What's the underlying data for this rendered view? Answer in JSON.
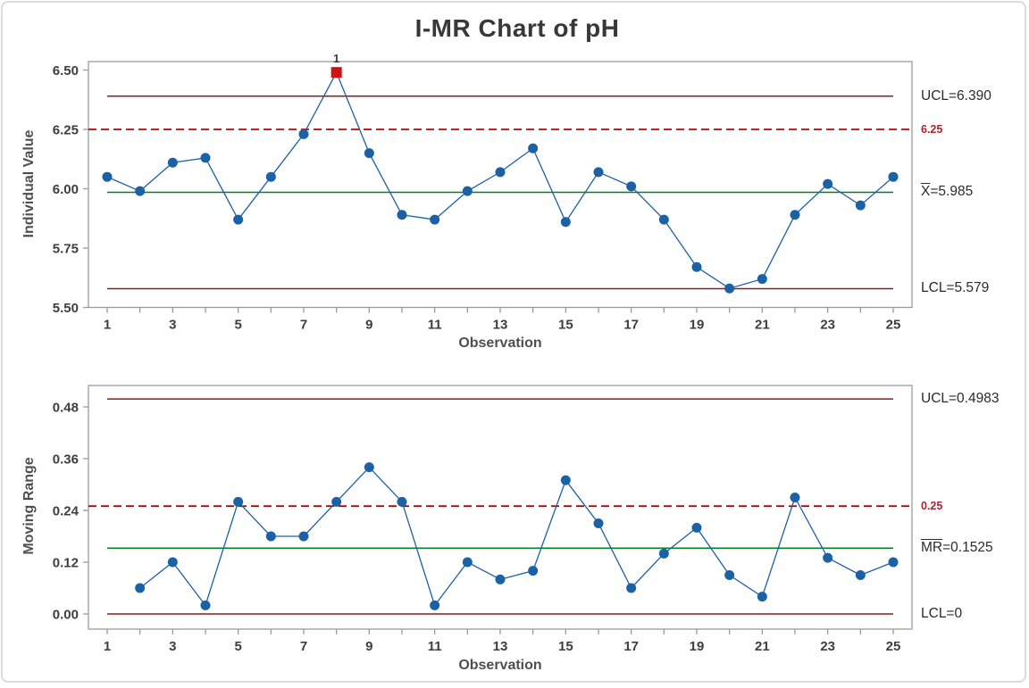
{
  "title": "I-MR Chart of pH",
  "colors": {
    "series_blue": "#1b61a5",
    "control_limit_dark_red": "#8e1b1b",
    "reference_red": "#c00000",
    "center_green": "#008023",
    "out_of_control_red": "#d01111",
    "axis_gray": "#9b9b9b",
    "text_dark": "#3e3e3e"
  },
  "chart_data": [
    {
      "type": "line",
      "name": "individuals",
      "ylabel": "Individual Value",
      "xlabel": "Observation",
      "x": [
        1,
        2,
        3,
        4,
        5,
        6,
        7,
        8,
        9,
        10,
        11,
        12,
        13,
        14,
        15,
        16,
        17,
        18,
        19,
        20,
        21,
        22,
        23,
        24,
        25
      ],
      "values": [
        6.05,
        5.99,
        6.11,
        6.13,
        5.87,
        6.05,
        6.23,
        6.49,
        6.15,
        5.89,
        5.87,
        5.99,
        6.07,
        6.17,
        5.86,
        6.07,
        6.01,
        5.87,
        5.67,
        5.58,
        5.62,
        5.89,
        6.02,
        5.93,
        6.05
      ],
      "ucl": 6.39,
      "center": 5.985,
      "lcl": 5.579,
      "reference": 6.25,
      "ylim": [
        5.5,
        6.55
      ],
      "yticks": [
        {
          "value": 6.5,
          "label": "6.50"
        },
        {
          "value": 6.25,
          "label": "6.25"
        },
        {
          "value": 6.0,
          "label": "6.00"
        },
        {
          "value": 5.75,
          "label": "5.75"
        },
        {
          "value": 5.5,
          "label": "5.50"
        }
      ],
      "xtick_labels": [
        {
          "value": 1,
          "label": "1"
        },
        {
          "value": 3,
          "label": "3"
        },
        {
          "value": 5,
          "label": "5"
        },
        {
          "value": 7,
          "label": "7"
        },
        {
          "value": 9,
          "label": "9"
        },
        {
          "value": 11,
          "label": "11"
        },
        {
          "value": 13,
          "label": "13"
        },
        {
          "value": 15,
          "label": "15"
        },
        {
          "value": 17,
          "label": "17"
        },
        {
          "value": 19,
          "label": "19"
        },
        {
          "value": 21,
          "label": "21"
        },
        {
          "value": 23,
          "label": "23"
        },
        {
          "value": 25,
          "label": "25"
        }
      ],
      "out_of_control": [
        {
          "x": 8,
          "value": 6.49,
          "label": "1"
        }
      ],
      "labels": {
        "ucl": "UCL=6.390",
        "reference": "6.25",
        "center_bar": "X",
        "center_rest": "=5.985",
        "lcl": "LCL=5.579"
      }
    },
    {
      "type": "line",
      "name": "moving-range",
      "ylabel": "Moving Range",
      "xlabel": "Observation",
      "x": [
        1,
        2,
        3,
        4,
        5,
        6,
        7,
        8,
        9,
        10,
        11,
        12,
        13,
        14,
        15,
        16,
        17,
        18,
        19,
        20,
        21,
        22,
        23,
        24,
        25
      ],
      "values": [
        null,
        0.06,
        0.12,
        0.02,
        0.26,
        0.18,
        0.18,
        0.26,
        0.34,
        0.26,
        0.02,
        0.12,
        0.08,
        0.1,
        0.31,
        0.21,
        0.06,
        0.14,
        0.2,
        0.09,
        0.04,
        0.27,
        0.13,
        0.09,
        0.12
      ],
      "ucl": 0.4983,
      "center": 0.1525,
      "lcl": 0,
      "reference": 0.25,
      "ylim": [
        0,
        0.53
      ],
      "yticks": [
        {
          "value": 0.48,
          "label": "0.48"
        },
        {
          "value": 0.36,
          "label": "0.36"
        },
        {
          "value": 0.24,
          "label": "0.24"
        },
        {
          "value": 0.12,
          "label": "0.12"
        },
        {
          "value": 0.0,
          "label": "0.00"
        }
      ],
      "xtick_labels": [
        {
          "value": 1,
          "label": "1"
        },
        {
          "value": 3,
          "label": "3"
        },
        {
          "value": 5,
          "label": "5"
        },
        {
          "value": 7,
          "label": "7"
        },
        {
          "value": 9,
          "label": "9"
        },
        {
          "value": 11,
          "label": "11"
        },
        {
          "value": 13,
          "label": "13"
        },
        {
          "value": 15,
          "label": "15"
        },
        {
          "value": 17,
          "label": "17"
        },
        {
          "value": 19,
          "label": "19"
        },
        {
          "value": 21,
          "label": "21"
        },
        {
          "value": 23,
          "label": "23"
        },
        {
          "value": 25,
          "label": "25"
        }
      ],
      "out_of_control": [],
      "labels": {
        "ucl": "UCL=0.4983",
        "reference": "0.25",
        "center_bar": "MR",
        "center_rest": "=0.1525",
        "lcl": "LCL=0"
      }
    }
  ]
}
